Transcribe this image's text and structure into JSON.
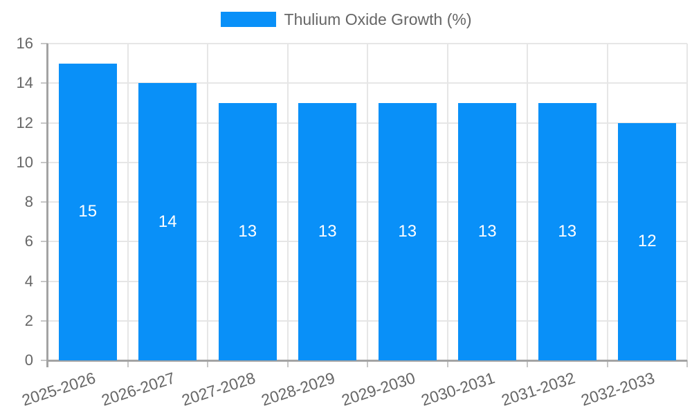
{
  "chart_data": {
    "type": "bar",
    "title": "",
    "legend": {
      "label": "Thulium Oxide Growth (%)",
      "position": "top"
    },
    "categories": [
      "2025-2026",
      "2026-2027",
      "2027-2028",
      "2028-2029",
      "2029-2030",
      "2030-2031",
      "2031-2032",
      "2032-2033"
    ],
    "series": [
      {
        "name": "Thulium Oxide Growth (%)",
        "values": [
          15,
          14,
          13,
          13,
          13,
          13,
          13,
          12
        ]
      }
    ],
    "bar_value_labels": [
      "15",
      "14",
      "13",
      "13",
      "13",
      "13",
      "13",
      "12"
    ],
    "ytick_labels": [
      "0",
      "2",
      "4",
      "6",
      "8",
      "10",
      "12",
      "14",
      "16"
    ],
    "ylim": [
      0,
      16
    ],
    "ytick_step": 2,
    "xlabel": "",
    "ylabel": "",
    "grid": "both",
    "x_label_rotation_deg": -18,
    "colors": {
      "bar": "#0990f8",
      "grid": "#e6e6e6",
      "axis": "#a3a3a3",
      "tick": "#c6c6c6",
      "text": "#666666",
      "bar_label_text": "#ffffff",
      "background": "#ffffff"
    }
  }
}
